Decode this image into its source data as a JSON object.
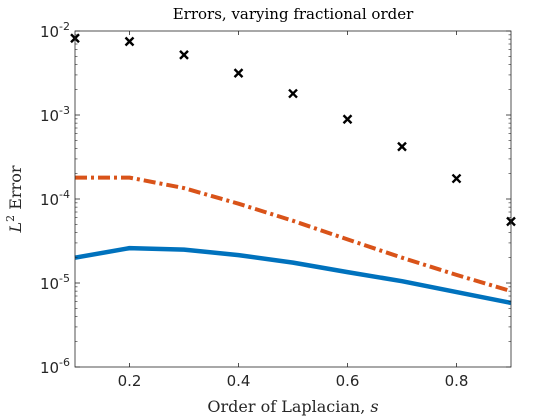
{
  "chart_data": {
    "type": "line",
    "title": "Errors, varying fractional order",
    "xlabel": "Order of Laplacian, ",
    "xlabel_var": "s",
    "ylabel_base": "L",
    "ylabel_sup": "2",
    "ylabel_rest": " Error",
    "xlim": [
      0.1,
      0.9
    ],
    "ylim": [
      1e-06,
      0.01
    ],
    "yscale": "log",
    "grid": false,
    "legend": "none",
    "x_ticks": [
      0.2,
      0.4,
      0.6,
      0.8
    ],
    "x_tick_labels": [
      "0.2",
      "0.4",
      "0.6",
      "0.8"
    ],
    "y_ticks": [
      {
        "value": 1e-06,
        "base": "10",
        "exp": "-6"
      },
      {
        "value": 1e-05,
        "base": "10",
        "exp": "-5"
      },
      {
        "value": 0.0001,
        "base": "10",
        "exp": "-4"
      },
      {
        "value": 0.001,
        "base": "10",
        "exp": "-3"
      },
      {
        "value": 0.01,
        "base": "10",
        "exp": "-2"
      }
    ],
    "series": [
      {
        "style": "solid",
        "color": "#0072BD",
        "x": [
          0.1,
          0.2,
          0.3,
          0.4,
          0.5,
          0.6,
          0.7,
          0.8,
          0.9
        ],
        "values": [
          2e-05,
          2.6e-05,
          2.5e-05,
          2.15e-05,
          1.75e-05,
          1.35e-05,
          1.05e-05,
          7.8e-06,
          5.8e-06
        ]
      },
      {
        "style": "dashdot",
        "color": "#D95319",
        "x": [
          0.1,
          0.2,
          0.3,
          0.4,
          0.5,
          0.6,
          0.7,
          0.8,
          0.9
        ],
        "values": [
          0.00018,
          0.00018,
          0.000135,
          8.8e-05,
          5.5e-05,
          3.3e-05,
          2e-05,
          1.25e-05,
          8e-06
        ]
      },
      {
        "style": "markers",
        "marker": "x",
        "color": "#000000",
        "x": [
          0.1,
          0.2,
          0.3,
          0.4,
          0.5,
          0.6,
          0.7,
          0.8,
          0.9
        ],
        "values": [
          0.0082,
          0.0075,
          0.0052,
          0.00315,
          0.0018,
          0.00089,
          0.00042,
          0.000175,
          5.4e-05
        ]
      }
    ]
  }
}
